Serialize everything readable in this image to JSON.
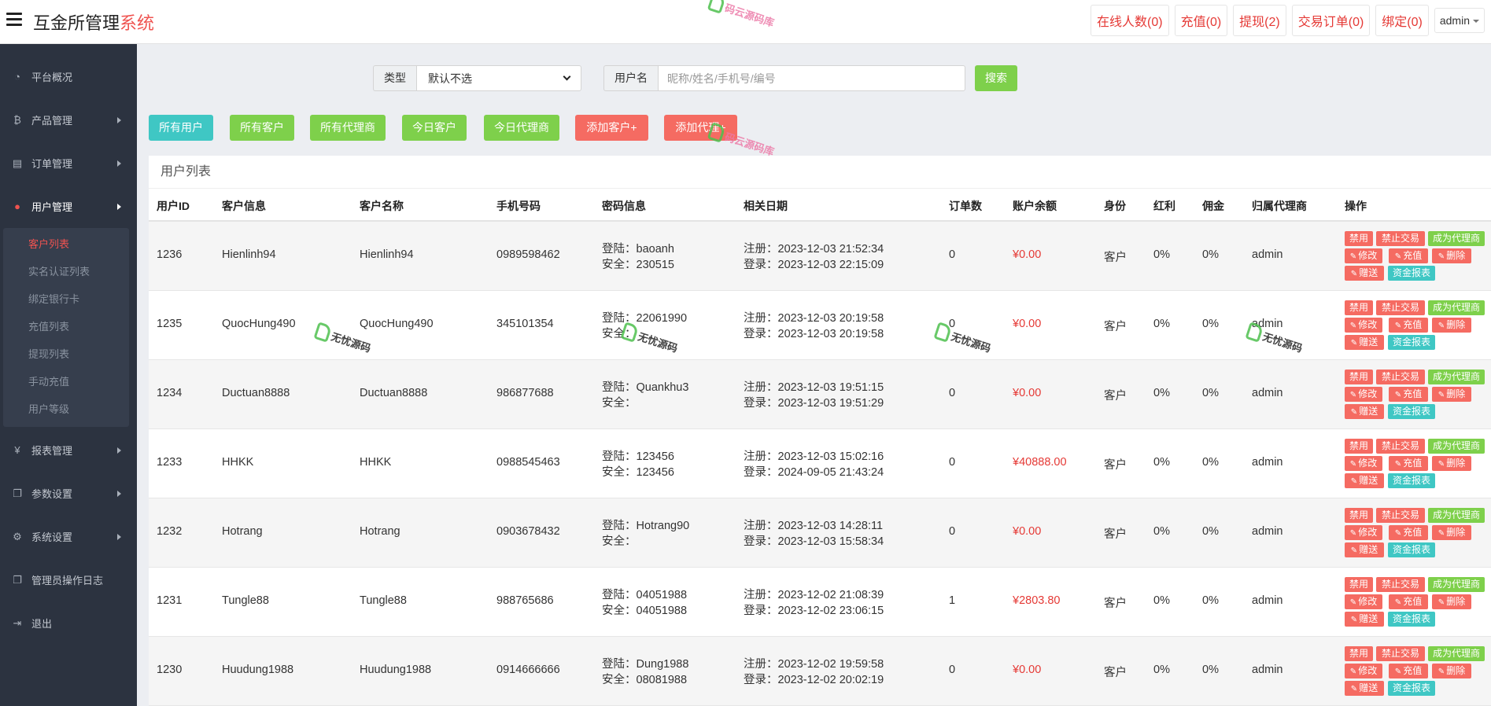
{
  "header": {
    "brand_main": "互金所管理",
    "brand_accent": "系统",
    "links": [
      "在线人数(0)",
      "充值(0)",
      "提现(2)",
      "交易订单(0)",
      "绑定(0)"
    ],
    "admin": "admin"
  },
  "sidebar": {
    "items": [
      {
        "label": "平台概况",
        "icon": "dashboard-icon"
      },
      {
        "label": "产品管理",
        "icon": "bitcoin-icon"
      },
      {
        "label": "订单管理",
        "icon": "list-icon"
      },
      {
        "label": "用户管理",
        "icon": "user-icon"
      },
      {
        "label": "报表管理",
        "icon": "yen-icon"
      },
      {
        "label": "参数设置",
        "icon": "copy-icon"
      },
      {
        "label": "系统设置",
        "icon": "gears-icon"
      },
      {
        "label": "管理员操作日志",
        "icon": "copy-icon"
      },
      {
        "label": "退出",
        "icon": "logout-icon"
      }
    ],
    "sub_items": [
      "客户列表",
      "实名认证列表",
      "绑定银行卡",
      "充值列表",
      "提现列表",
      "手动充值",
      "用户等级"
    ]
  },
  "filters": {
    "type_label": "类型",
    "type_value": "默认不选",
    "user_label": "用户名",
    "user_placeholder": "昵称/姓名/手机号/编号",
    "search_label": "搜索"
  },
  "buttons": {
    "all_users": "所有用户",
    "all_customers": "所有客户",
    "all_agents": "所有代理商",
    "today_customers": "今日客户",
    "today_agents": "今日代理商",
    "add_customer": "添加客户+",
    "add_agent": "添加代理+"
  },
  "table": {
    "title": "用户列表",
    "headers": [
      "用户ID",
      "客户信息",
      "客户名称",
      "手机号码",
      "密码信息",
      "相关日期",
      "订单数",
      "账户余额",
      "身份",
      "红利",
      "佣金",
      "归属代理商",
      "操作"
    ],
    "ops": {
      "ban": "禁用",
      "ban_trade": "禁止交易",
      "make_agent": "成为代理商",
      "edit": "修改",
      "recharge": "充值",
      "delete": "删除",
      "gift": "赠送",
      "fund_report": "资金报表"
    },
    "rows": [
      {
        "id": "1236",
        "info": "Hienlinh94",
        "name": "Hienlinh94",
        "phone": "0989598462",
        "pw_login": "登陆：baoanh",
        "pw_safe": "安全：230515",
        "reg": "注册：2023-12-03 21:52:34",
        "login": "登录：2023-12-03 22:15:09",
        "orders": "0",
        "balance": "¥0.00",
        "role": "客户",
        "bonus": "0%",
        "commission": "0%",
        "agent": "admin"
      },
      {
        "id": "1235",
        "info": "QuocHung490",
        "name": "QuocHung490",
        "phone": "345101354",
        "pw_login": "登陆：22061990",
        "pw_safe": "安全：",
        "reg": "注册：2023-12-03 20:19:58",
        "login": "登录：2023-12-03 20:19:58",
        "orders": "0",
        "balance": "¥0.00",
        "role": "客户",
        "bonus": "0%",
        "commission": "0%",
        "agent": "admin"
      },
      {
        "id": "1234",
        "info": "Ductuan8888",
        "name": "Ductuan8888",
        "phone": "986877688",
        "pw_login": "登陆：Quankhu3",
        "pw_safe": "安全：",
        "reg": "注册：2023-12-03 19:51:15",
        "login": "登录：2023-12-03 19:51:29",
        "orders": "0",
        "balance": "¥0.00",
        "role": "客户",
        "bonus": "0%",
        "commission": "0%",
        "agent": "admin"
      },
      {
        "id": "1233",
        "info": "HHKK",
        "name": "HHKK",
        "phone": "0988545463",
        "pw_login": "登陆：123456",
        "pw_safe": "安全：123456",
        "reg": "注册：2023-12-03 15:02:16",
        "login": "登录：2024-09-05 21:43:24",
        "orders": "0",
        "balance": "¥40888.00",
        "role": "客户",
        "bonus": "0%",
        "commission": "0%",
        "agent": "admin"
      },
      {
        "id": "1232",
        "info": "Hotrang",
        "name": "Hotrang",
        "phone": "0903678432",
        "pw_login": "登陆：Hotrang90",
        "pw_safe": "安全：",
        "reg": "注册：2023-12-03 14:28:11",
        "login": "登录：2023-12-03 15:58:34",
        "orders": "0",
        "balance": "¥0.00",
        "role": "客户",
        "bonus": "0%",
        "commission": "0%",
        "agent": "admin"
      },
      {
        "id": "1231",
        "info": "Tungle88",
        "name": "Tungle88",
        "phone": "988765686",
        "pw_login": "登陆：04051988",
        "pw_safe": "安全：04051988",
        "reg": "注册：2023-12-02 21:08:39",
        "login": "登录：2023-12-02 23:06:15",
        "orders": "1",
        "balance": "¥2803.80",
        "role": "客户",
        "bonus": "0%",
        "commission": "0%",
        "agent": "admin"
      },
      {
        "id": "1230",
        "info": "Huudung1988",
        "name": "Huudung1988",
        "phone": "0914666666",
        "pw_login": "登陆：Dung1988",
        "pw_safe": "安全：08081988",
        "reg": "注册：2023-12-02 19:59:58",
        "login": "登录：2023-12-02 20:02:19",
        "orders": "0",
        "balance": "¥0.00",
        "role": "客户",
        "bonus": "0%",
        "commission": "0%",
        "agent": "admin"
      }
    ]
  },
  "watermark": {
    "pink": "码云源码库",
    "dark": "无忧源码"
  }
}
